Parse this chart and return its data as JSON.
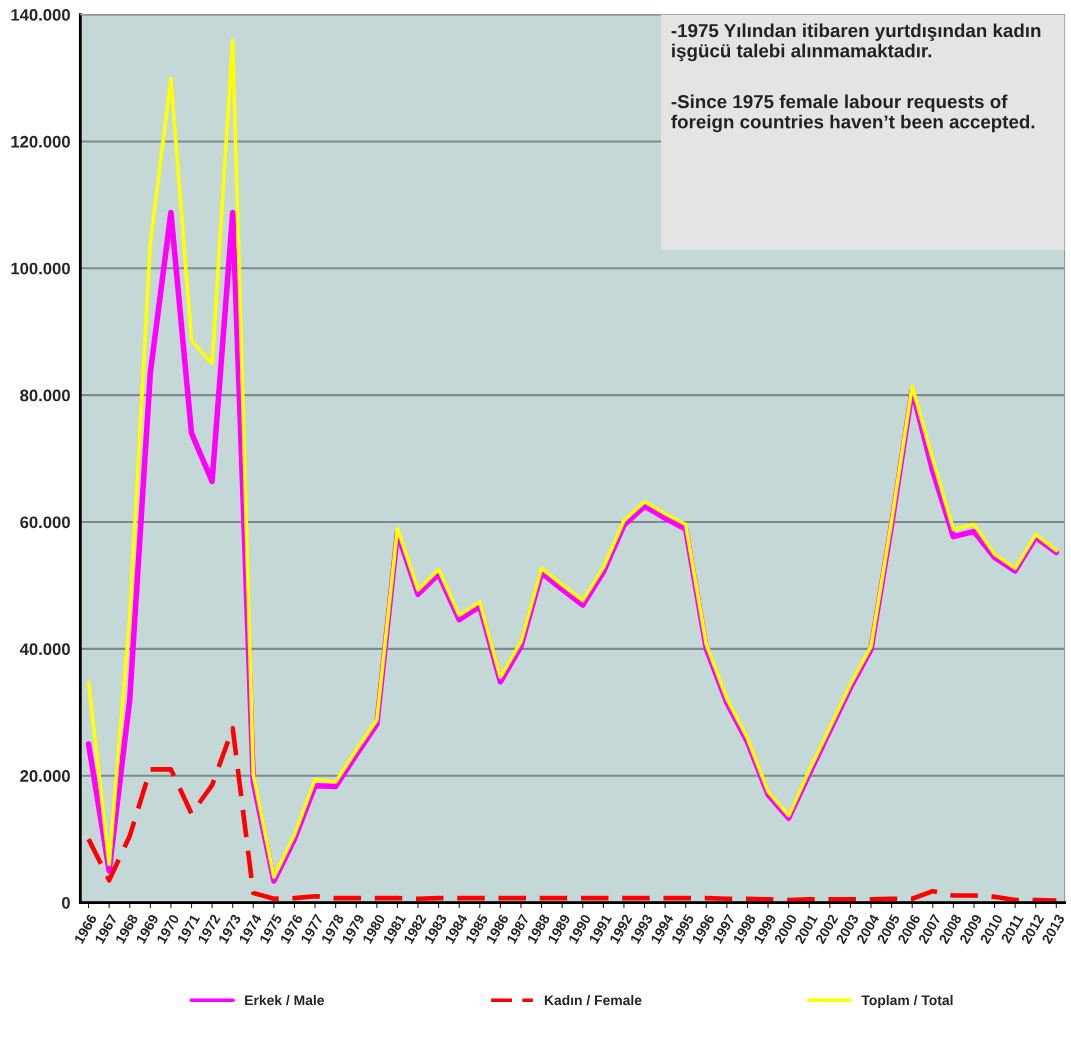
{
  "chart_data": {
    "type": "line",
    "categories": [
      "1966",
      "1967",
      "1968",
      "1969",
      "1970",
      "1971",
      "1972",
      "1973",
      "1974",
      "1975",
      "1976",
      "1977",
      "1978",
      "1979",
      "1980",
      "1981",
      "1982",
      "1983",
      "1984",
      "1985",
      "1986",
      "1987",
      "1988",
      "1989",
      "1990",
      "1991",
      "1992",
      "1993",
      "1994",
      "1995",
      "1996",
      "1997",
      "1998",
      "1999",
      "2000",
      "2001",
      "2002",
      "2003",
      "2004",
      "2005",
      "2006",
      "2007",
      "2008",
      "2009",
      "2010",
      "2011",
      "2012",
      "2013"
    ],
    "series": [
      {
        "name": "Erkek / Male",
        "color": "#ff00ff",
        "line_style": "solid",
        "values": [
          25000,
          5000,
          32000,
          83500,
          108800,
          74000,
          66400,
          108800,
          19000,
          3400,
          10000,
          18400,
          18300,
          23300,
          28100,
          58300,
          48600,
          51800,
          44600,
          46700,
          34800,
          40400,
          52000,
          49400,
          46900,
          52100,
          59500,
          62500,
          60600,
          58900,
          40000,
          31500,
          25300,
          17000,
          13300,
          20300,
          27100,
          33900,
          39900,
          59600,
          80800,
          68000,
          57700,
          58500,
          54400,
          52300,
          57600,
          55200
        ]
      },
      {
        "name": "Kadın / Female",
        "color": "#ff0000",
        "line_style": "dashed",
        "values": [
          10000,
          3500,
          10500,
          21000,
          21000,
          14000,
          18500,
          27500,
          1500,
          600,
          700,
          1000,
          700,
          700,
          700,
          700,
          600,
          700,
          700,
          700,
          700,
          700,
          700,
          700,
          700,
          700,
          700,
          700,
          700,
          700,
          700,
          600,
          600,
          500,
          400,
          500,
          500,
          500,
          500,
          600,
          600,
          1800,
          1100,
          1100,
          900,
          400,
          400,
          300
        ]
      },
      {
        "name": "Toplam / Total",
        "color": "#ffff00",
        "line_style": "solid",
        "values": [
          34700,
          6000,
          45000,
          104000,
          129900,
          88600,
          85000,
          136000,
          20200,
          4000,
          10700,
          19400,
          19000,
          24000,
          28800,
          59000,
          49300,
          52500,
          45300,
          47400,
          35500,
          41100,
          52700,
          50100,
          47600,
          52800,
          60200,
          63200,
          61300,
          59600,
          40700,
          32100,
          25900,
          17500,
          13700,
          20800,
          27600,
          34400,
          40400,
          60200,
          81400,
          69800,
          58800,
          59600,
          54900,
          52700,
          58000,
          55500
        ]
      }
    ],
    "ylim": [
      0,
      140000
    ],
    "yticks": [
      {
        "value": 0,
        "label": "0"
      },
      {
        "value": 20000,
        "label": "20.000"
      },
      {
        "value": 40000,
        "label": "40.000"
      },
      {
        "value": 60000,
        "label": "60.000"
      },
      {
        "value": 80000,
        "label": "80.000"
      },
      {
        "value": 100000,
        "label": "100.000"
      },
      {
        "value": 120000,
        "label": "120.000"
      },
      {
        "value": 140000,
        "label": "140.000"
      }
    ],
    "grid": "y",
    "legend": "bottom",
    "marker": "none",
    "annotations": [
      "-1975 Yılından itibaren yurtdışından kadın işgücü talebi alınmamaktadır.",
      "-Since 1975 female labour requests of foreign countries haven’t been accepted."
    ]
  }
}
